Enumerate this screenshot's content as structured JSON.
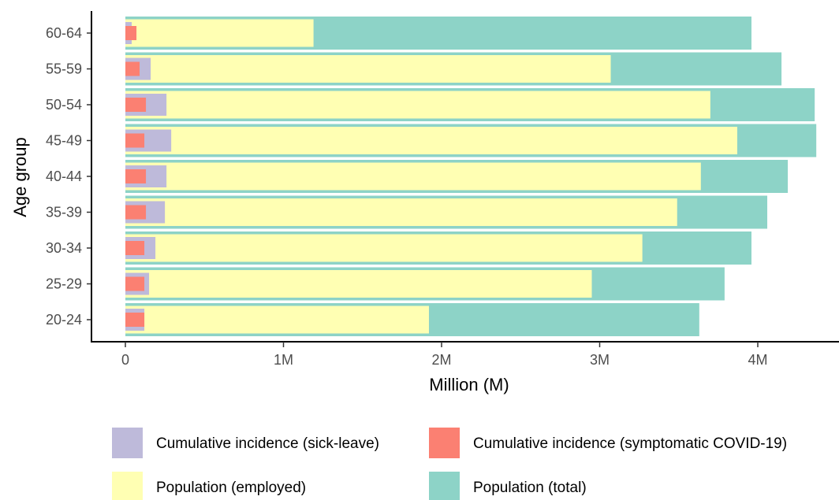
{
  "chart_data": {
    "type": "bar",
    "orientation": "horizontal",
    "xlabel": "Million (M)",
    "ylabel": "Age group",
    "xlim": [
      0,
      4.38
    ],
    "x_ticks": [
      {
        "value": 0,
        "label": "0"
      },
      {
        "value": 1,
        "label": "1M"
      },
      {
        "value": 2,
        "label": "2M"
      },
      {
        "value": 3,
        "label": "3M"
      },
      {
        "value": 4,
        "label": "4M"
      }
    ],
    "categories": [
      "20-24",
      "25-29",
      "30-34",
      "35-39",
      "40-44",
      "45-49",
      "50-54",
      "55-59",
      "60-64"
    ],
    "grid": false,
    "legend_position": "bottom",
    "series": [
      {
        "name": "Population (total)",
        "color": "#8dd3c7",
        "values": [
          3.63,
          3.79,
          3.96,
          4.06,
          4.19,
          4.37,
          4.36,
          4.15,
          3.96
        ]
      },
      {
        "name": "Population (employed)",
        "color": "#ffffb3",
        "values": [
          1.92,
          2.95,
          3.27,
          3.49,
          3.64,
          3.87,
          3.7,
          3.07,
          1.19
        ]
      },
      {
        "name": "Cumulative incidence (sick-leave)",
        "color": "#bebada",
        "values": [
          0.12,
          0.15,
          0.19,
          0.25,
          0.26,
          0.29,
          0.26,
          0.16,
          0.04
        ]
      },
      {
        "name": "Cumulative incidence (symptomatic COVID-19)",
        "color": "#fb8072",
        "values": [
          0.12,
          0.12,
          0.12,
          0.13,
          0.13,
          0.12,
          0.13,
          0.09,
          0.07
        ]
      }
    ],
    "legend": [
      {
        "name": "Cumulative incidence (sick-leave)",
        "color": "#bebada"
      },
      {
        "name": "Cumulative incidence (symptomatic COVID-19)",
        "color": "#fb8072"
      },
      {
        "name": "Population (employed)",
        "color": "#ffffb3"
      },
      {
        "name": "Population (total)",
        "color": "#8dd3c7"
      }
    ]
  }
}
